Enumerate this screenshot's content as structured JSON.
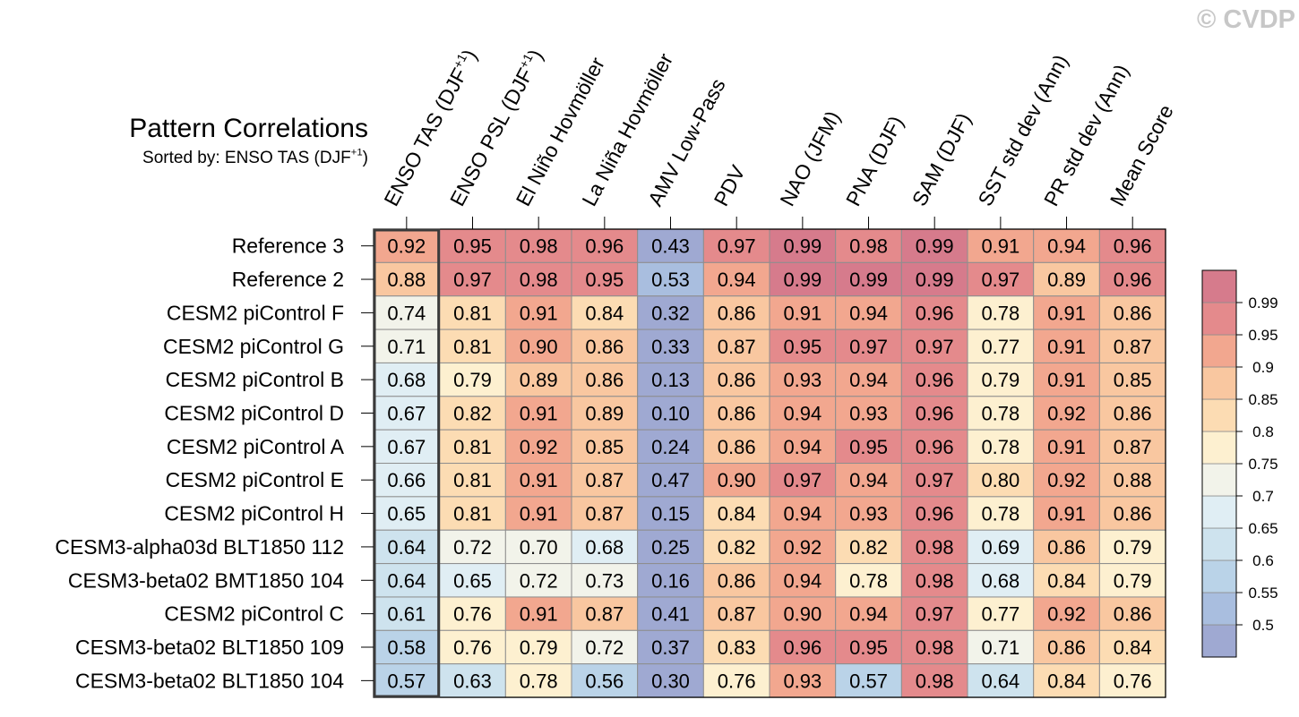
{
  "watermark": "© CVDP",
  "title": "Pattern Correlations",
  "subtitle": {
    "text": "Sorted by: ENSO TAS (DJF",
    "superscript": "+1",
    "suffix": ")"
  },
  "chart_data": {
    "type": "heatmap",
    "title": "Pattern Correlations",
    "subtitle": "Sorted by: ENSO TAS (DJF+1)",
    "sorted_by_column": 0,
    "columns": [
      {
        "label": "ENSO TAS (DJF",
        "sup": "+1",
        "suffix": ")"
      },
      {
        "label": "ENSO PSL (DJF",
        "sup": "+1",
        "suffix": ")"
      },
      {
        "label": "El Niño Hovmöller"
      },
      {
        "label": "La Niña Hovmöller"
      },
      {
        "label": "AMV Low-Pass"
      },
      {
        "label": "PDV"
      },
      {
        "label": "NAO (JFM)"
      },
      {
        "label": "PNA (DJF)"
      },
      {
        "label": "SAM (DJF)"
      },
      {
        "label": "SST std dev (Ann)"
      },
      {
        "label": "PR std dev (Ann)"
      },
      {
        "label": "Mean Score"
      }
    ],
    "rows": [
      "Reference 3",
      "Reference 2",
      "CESM2 piControl F",
      "CESM2 piControl G",
      "CESM2 piControl B",
      "CESM2 piControl D",
      "CESM2 piControl A",
      "CESM2 piControl E",
      "CESM2 piControl H",
      "CESM3-alpha03d BLT1850 112",
      "CESM3-beta02 BMT1850 104",
      "CESM2 piControl C",
      "CESM3-beta02 BLT1850 109",
      "CESM3-beta02 BLT1850 104"
    ],
    "values": [
      [
        "0.92",
        "0.95",
        "0.98",
        "0.96",
        "0.43",
        "0.97",
        "0.99",
        "0.98",
        "0.99",
        "0.91",
        "0.94",
        "0.96"
      ],
      [
        "0.88",
        "0.97",
        "0.98",
        "0.95",
        "0.53",
        "0.94",
        "0.99",
        "0.99",
        "0.99",
        "0.97",
        "0.89",
        "0.96"
      ],
      [
        "0.74",
        "0.81",
        "0.91",
        "0.84",
        "0.32",
        "0.86",
        "0.91",
        "0.94",
        "0.96",
        "0.78",
        "0.91",
        "0.86"
      ],
      [
        "0.71",
        "0.81",
        "0.90",
        "0.86",
        "0.33",
        "0.87",
        "0.95",
        "0.97",
        "0.97",
        "0.77",
        "0.91",
        "0.87"
      ],
      [
        "0.68",
        "0.79",
        "0.89",
        "0.86",
        "0.13",
        "0.86",
        "0.93",
        "0.94",
        "0.96",
        "0.79",
        "0.91",
        "0.85"
      ],
      [
        "0.67",
        "0.82",
        "0.91",
        "0.89",
        "0.10",
        "0.86",
        "0.94",
        "0.93",
        "0.96",
        "0.78",
        "0.92",
        "0.86"
      ],
      [
        "0.67",
        "0.81",
        "0.92",
        "0.85",
        "0.24",
        "0.86",
        "0.94",
        "0.95",
        "0.96",
        "0.78",
        "0.91",
        "0.87"
      ],
      [
        "0.66",
        "0.81",
        "0.91",
        "0.87",
        "0.47",
        "0.90",
        "0.97",
        "0.94",
        "0.97",
        "0.80",
        "0.92",
        "0.88"
      ],
      [
        "0.65",
        "0.81",
        "0.91",
        "0.87",
        "0.15",
        "0.84",
        "0.94",
        "0.93",
        "0.96",
        "0.78",
        "0.91",
        "0.86"
      ],
      [
        "0.64",
        "0.72",
        "0.70",
        "0.68",
        "0.25",
        "0.82",
        "0.92",
        "0.82",
        "0.98",
        "0.69",
        "0.86",
        "0.79"
      ],
      [
        "0.64",
        "0.65",
        "0.72",
        "0.73",
        "0.16",
        "0.86",
        "0.94",
        "0.78",
        "0.98",
        "0.68",
        "0.84",
        "0.79"
      ],
      [
        "0.61",
        "0.76",
        "0.91",
        "0.87",
        "0.41",
        "0.87",
        "0.90",
        "0.94",
        "0.97",
        "0.77",
        "0.92",
        "0.86"
      ],
      [
        "0.58",
        "0.76",
        "0.79",
        "0.72",
        "0.37",
        "0.83",
        "0.96",
        "0.95",
        "0.98",
        "0.71",
        "0.86",
        "0.84"
      ],
      [
        "0.57",
        "0.63",
        "0.78",
        "0.56",
        "0.30",
        "0.76",
        "0.93",
        "0.57",
        "0.98",
        "0.64",
        "0.84",
        "0.76"
      ]
    ],
    "colorbar": {
      "levels": [
        0.5,
        0.55,
        0.6,
        0.65,
        0.7,
        0.75,
        0.8,
        0.85,
        0.9,
        0.95,
        0.99
      ],
      "tick_labels": [
        "0.5",
        "0.55",
        "0.6",
        "0.65",
        "0.7",
        "0.75",
        "0.8",
        "0.85",
        "0.9",
        "0.95",
        "0.99"
      ],
      "colors": [
        "#9fa9d2",
        "#a9bedf",
        "#bad3e8",
        "#cee3ee",
        "#e0eef4",
        "#f2f3ea",
        "#fdf0d0",
        "#fcdcb3",
        "#f9c7a0",
        "#f2a78f",
        "#e48a8c",
        "#d67b8c"
      ]
    }
  }
}
